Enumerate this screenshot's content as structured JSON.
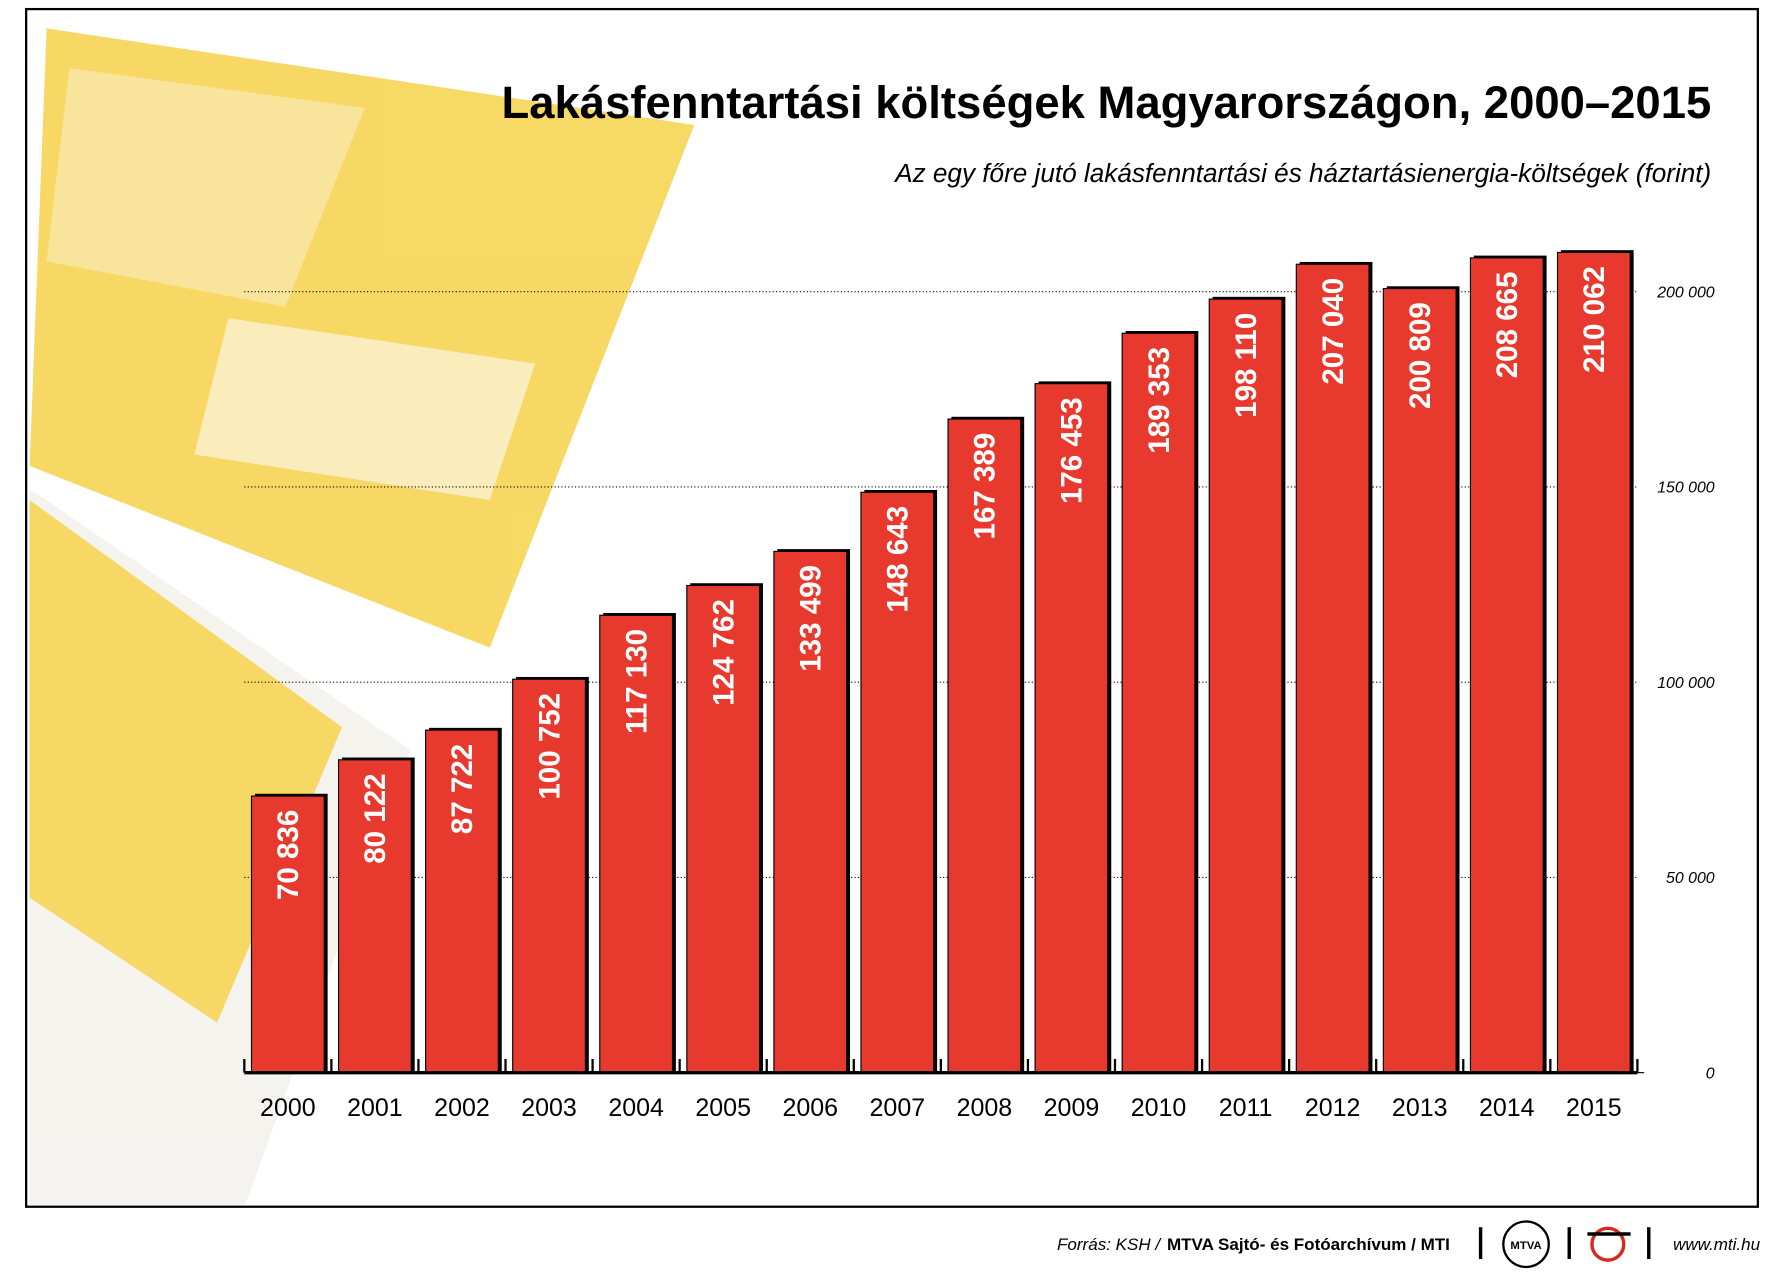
{
  "chart_data": {
    "type": "bar",
    "title": "Lakásfenntartási költségek Magyarországon, 2000–2015",
    "subtitle": "Az egy főre jutó lakásfenntartási és háztartásienergia-költségek (forint)",
    "categories": [
      "2000",
      "2001",
      "2002",
      "2003",
      "2004",
      "2005",
      "2006",
      "2007",
      "2008",
      "2009",
      "2010",
      "2011",
      "2012",
      "2013",
      "2014",
      "2015"
    ],
    "values": [
      70836,
      80122,
      87722,
      100752,
      117130,
      124762,
      133499,
      148643,
      167389,
      176453,
      189353,
      198110,
      207040,
      200809,
      208665,
      210062
    ],
    "value_labels": [
      "70 836",
      "80 122",
      "87 722",
      "100 752",
      "117 130",
      "124 762",
      "133 499",
      "148 643",
      "167 389",
      "176 453",
      "189 353",
      "198 110",
      "207 040",
      "200 809",
      "208 665",
      "210 062"
    ],
    "color": "#e8392f",
    "ylim": [
      0,
      220000
    ],
    "yticks": [
      0,
      {
        "value": 50000,
        "label": "50 000"
      },
      {
        "value": 100000,
        "label": "100 000"
      },
      {
        "value": 150000,
        "label": "150 000"
      },
      {
        "value": 200000,
        "label": "200 000"
      }
    ],
    "grid": true,
    "source_label": "Forrás: KSH /",
    "source_org": "MTVA Sajtó- és Fotóarchívum / MTI",
    "logo": "MTVA",
    "url": "www.mti.hu"
  }
}
